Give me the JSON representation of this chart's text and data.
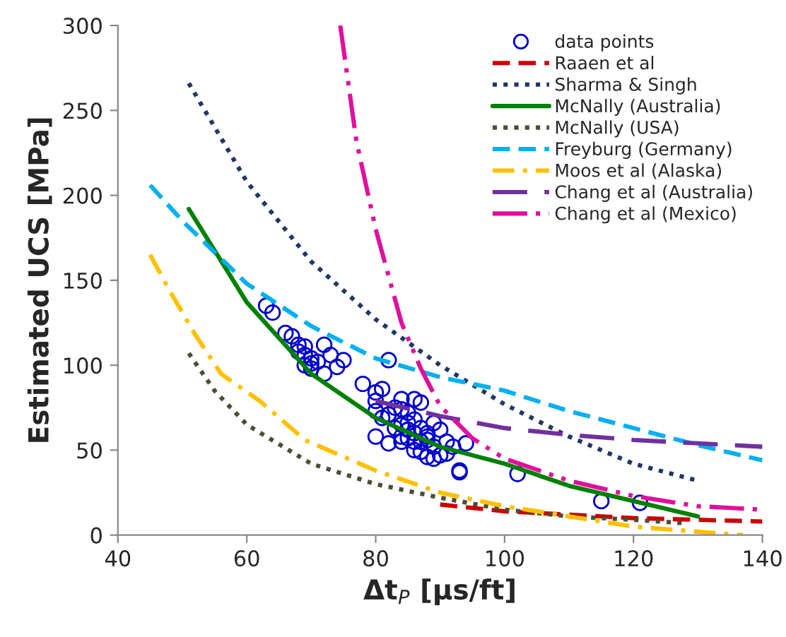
{
  "chart_data": {
    "type": "line",
    "xlabel": "Δt$_{P}$ [μs/ft]",
    "ylabel": "Estimated UCS [MPa]",
    "xlim": [
      40,
      140
    ],
    "ylim": [
      0,
      300
    ],
    "xticks": [
      40,
      60,
      80,
      100,
      120,
      140
    ],
    "yticks": [
      0,
      50,
      100,
      150,
      200,
      250,
      300
    ],
    "grid": false,
    "legend": "top right",
    "series": [
      {
        "name": "data points",
        "type": "scatter",
        "marker": "circle",
        "color": "#0000cc",
        "x": [
          63,
          64,
          66,
          67,
          68,
          68,
          69,
          69,
          70,
          69,
          70,
          71,
          70,
          72,
          73,
          74,
          75,
          72,
          78,
          80,
          81,
          80,
          80,
          82,
          84,
          84,
          85,
          86,
          83,
          82,
          81,
          80,
          82,
          85,
          85,
          86,
          87,
          84,
          84,
          85,
          86,
          87,
          88,
          86,
          87,
          88,
          89,
          90,
          91,
          92,
          93,
          93,
          94,
          88,
          90,
          89,
          87,
          102,
          115,
          121,
          86,
          83,
          84,
          88,
          89,
          91
        ],
        "values": [
          135,
          131,
          119,
          117,
          112,
          108,
          111,
          106,
          104,
          100,
          101,
          102,
          98,
          112,
          106,
          99,
          103,
          95,
          89,
          84,
          86,
          79,
          73,
          103,
          80,
          74,
          72,
          68,
          75,
          71,
          69,
          58,
          54,
          66,
          62,
          60,
          63,
          58,
          55,
          57,
          55,
          55,
          58,
          50,
          49,
          46,
          52,
          47,
          48,
          52,
          38,
          37,
          54,
          60,
          62,
          66,
          78,
          36,
          20,
          19,
          80,
          63,
          65,
          56,
          45,
          55
        ]
      },
      {
        "name": "Raaen et al",
        "marker": "none",
        "line_style": "dashed",
        "color": "#cc0000",
        "x": [
          90,
          100,
          110,
          120,
          130,
          140
        ],
        "values": [
          18,
          14,
          12,
          10,
          9,
          8
        ]
      },
      {
        "name": "Sharma & Singh",
        "marker": "none",
        "line_style": "dotted",
        "color": "#1f3864",
        "x": [
          51,
          60,
          70,
          80,
          90,
          100,
          110,
          120,
          130
        ],
        "values": [
          266,
          208,
          161,
          127,
          100,
          77,
          58,
          42,
          32
        ]
      },
      {
        "name": "McNally (Australia)",
        "marker": "none",
        "line_style": "solid",
        "color": "#008000",
        "x": [
          51,
          60,
          70,
          80,
          90,
          100,
          110,
          120,
          130
        ],
        "values": [
          192,
          137,
          95,
          69,
          52,
          42,
          29,
          20,
          11
        ]
      },
      {
        "name": "McNally (USA)",
        "marker": "none",
        "line_style": "dotted",
        "color": "#4d4d33",
        "x": [
          51,
          55,
          60,
          70,
          80,
          90,
          100,
          110,
          120,
          128
        ],
        "values": [
          107,
          85,
          65,
          42,
          30,
          22,
          15,
          11,
          9,
          7
        ]
      },
      {
        "name": "Freyburg (Germany)",
        "marker": "none",
        "line_style": "dashed",
        "color": "#00b0f0",
        "x": [
          45,
          50,
          60,
          70,
          80,
          90,
          100,
          110,
          120,
          130,
          140
        ],
        "values": [
          206,
          185,
          148,
          123,
          104,
          93,
          85,
          73,
          63,
          53,
          44
        ]
      },
      {
        "name": "Moos et al (Alaska)",
        "marker": "none",
        "line_style": "dashdot",
        "color": "#ffc000",
        "x": [
          45,
          48,
          52,
          56,
          62,
          69,
          80,
          90,
          100,
          110,
          120,
          130,
          137
        ],
        "values": [
          165,
          144,
          118,
          95,
          79,
          56,
          38,
          25,
          17,
          11,
          5,
          2,
          0
        ]
      },
      {
        "name": "Chang et al (Australia)",
        "marker": "none",
        "line_style": "longdash",
        "color": "#7030a0",
        "x": [
          80,
          90,
          100,
          110,
          120,
          130,
          140
        ],
        "values": [
          79,
          70,
          63,
          59,
          56,
          54,
          52
        ]
      },
      {
        "name": "Chang et al (Mexico)",
        "marker": "none",
        "line_style": "dashdotdot",
        "color": "#e0109c",
        "x": [
          74.5,
          77,
          80,
          84,
          87,
          90,
          95,
          100,
          110,
          120,
          130,
          140
        ],
        "values": [
          300,
          232,
          180,
          125,
          98,
          76,
          57,
          45,
          32,
          23,
          17,
          15
        ]
      }
    ]
  }
}
